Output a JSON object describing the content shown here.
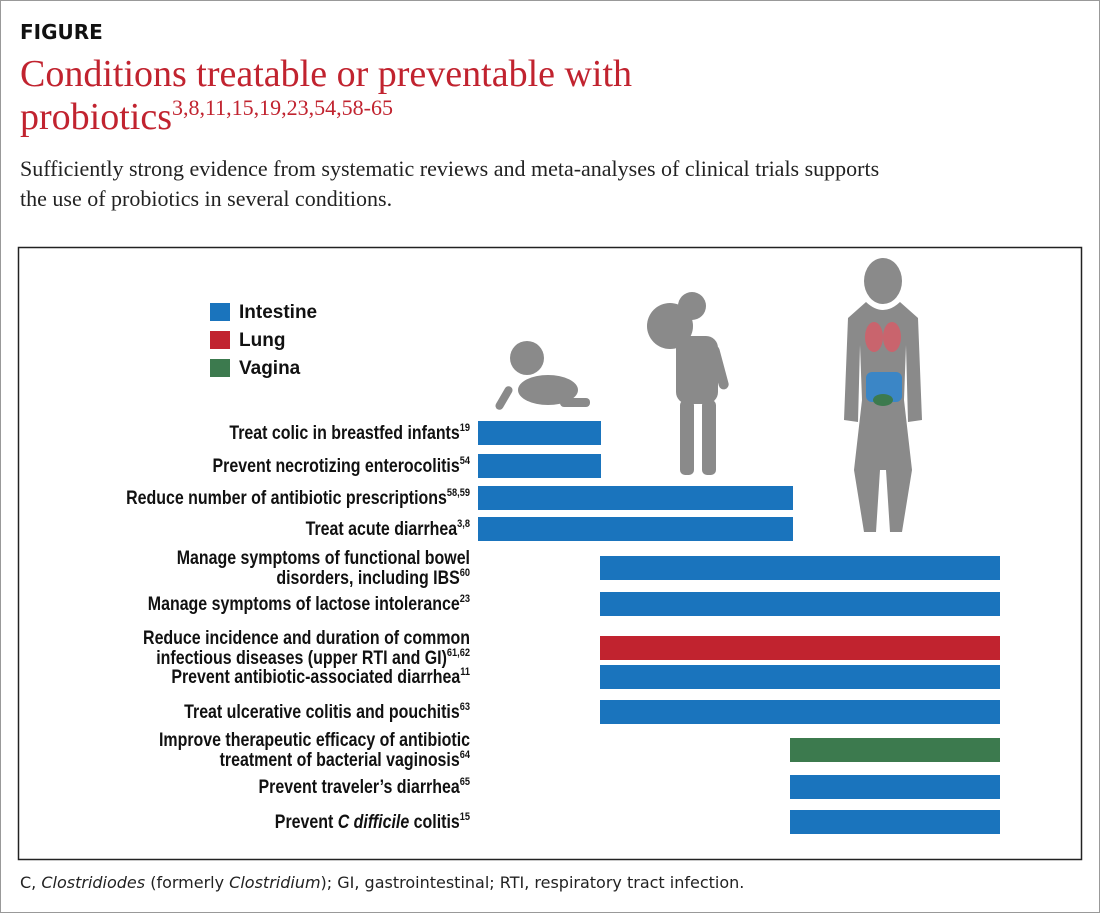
{
  "header": {
    "label": "FIGURE",
    "title": {
      "lines": [
        "Conditions treatable or preventable with",
        "probiotics"
      ],
      "ref": "3,8,11,15,19,23,54,58-65"
    },
    "subtitle": [
      "Sufficiently strong evidence from systematic reviews and meta-analyses of clinical trials supports",
      "the use of probiotics in several conditions."
    ]
  },
  "legend": [
    {
      "name": "Intestine",
      "color": "#1a74bd"
    },
    {
      "name": "Lung",
      "color": "#c1232f"
    },
    {
      "name": "Vagina",
      "color": "#3c7a4e"
    }
  ],
  "conditions": [
    {
      "lines": [
        "Treat colic in breastfed infants"
      ],
      "ref": "19",
      "organ": "Intestine"
    },
    {
      "lines": [
        "Prevent necrotizing enterocolitis"
      ],
      "ref": "54",
      "organ": "Intestine"
    },
    {
      "lines": [
        "Reduce number of antibiotic prescriptions"
      ],
      "ref": "58,59",
      "organ": "Intestine"
    },
    {
      "lines": [
        "Treat acute diarrhea"
      ],
      "ref": "3,8",
      "organ": "Intestine"
    },
    {
      "lines": [
        "Manage symptoms of functional bowel",
        "disorders, including IBS"
      ],
      "ref": "60",
      "organ": "Intestine"
    },
    {
      "lines": [
        "Manage symptoms of lactose intolerance"
      ],
      "ref": "23",
      "organ": "Intestine"
    },
    {
      "lines": [
        "Reduce incidence and duration of common",
        "infectious diseases (upper RTI and GI)"
      ],
      "ref": "61,62",
      "organ": "Lung"
    },
    {
      "lines": [
        "Prevent antibiotic-associated diarrhea"
      ],
      "ref": "11",
      "organ": "Intestine"
    },
    {
      "lines": [
        "Treat ulcerative colitis and pouchitis"
      ],
      "ref": "63",
      "organ": "Intestine"
    },
    {
      "lines": [
        "Improve therapeutic efficacy of antibiotic",
        "treatment of bacterial vaginosis"
      ],
      "ref": "64",
      "organ": "Vagina"
    },
    {
      "lines": [
        "Prevent traveler’s diarrhea"
      ],
      "ref": "65",
      "organ": "Intestine"
    },
    {
      "lines": [
        [
          "Prevent ",
          "C difficile",
          " colitis"
        ]
      ],
      "ref": "15",
      "organ": "Intestine"
    }
  ],
  "footnote": [
    "C, ",
    "Clostridiodes",
    " (formerly ",
    "Clostridium",
    "); GI, gastrointestinal; RTI, respiratory tract infection."
  ]
}
